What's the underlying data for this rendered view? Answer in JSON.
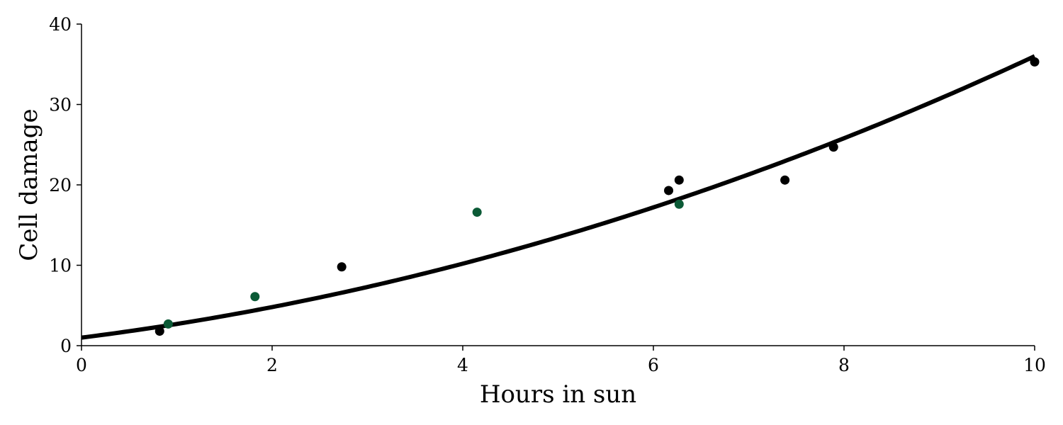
{
  "chart_data": {
    "type": "scatter",
    "title": "",
    "xlabel": "Hours in sun",
    "ylabel": "Cell damage",
    "xlim": [
      0,
      10
    ],
    "ylim": [
      0,
      40
    ],
    "x_ticks": [
      "0",
      "2",
      "4",
      "6",
      "8",
      "10"
    ],
    "y_ticks": [
      "0",
      "10",
      "20",
      "30",
      "40"
    ],
    "grid": false,
    "legend": false,
    "series": [
      {
        "color": "#000000",
        "points": [
          {
            "x": 0.82,
            "y": 1.8
          },
          {
            "x": 2.73,
            "y": 9.8
          },
          {
            "x": 6.16,
            "y": 19.3
          },
          {
            "x": 6.27,
            "y": 20.6
          },
          {
            "x": 7.38,
            "y": 20.6
          },
          {
            "x": 7.89,
            "y": 24.7
          },
          {
            "x": 10.0,
            "y": 35.3
          }
        ]
      },
      {
        "color": "#0b5a36",
        "points": [
          {
            "x": 0.91,
            "y": 2.7
          },
          {
            "x": 1.82,
            "y": 6.1
          },
          {
            "x": 4.15,
            "y": 16.6
          },
          {
            "x": 6.27,
            "y": 17.6
          }
        ]
      }
    ],
    "fit_curve": {
      "type": "quadratic",
      "color": "#000000",
      "coefficients": {
        "a": 0.2,
        "b": 1.5,
        "c": 1.0
      }
    }
  }
}
